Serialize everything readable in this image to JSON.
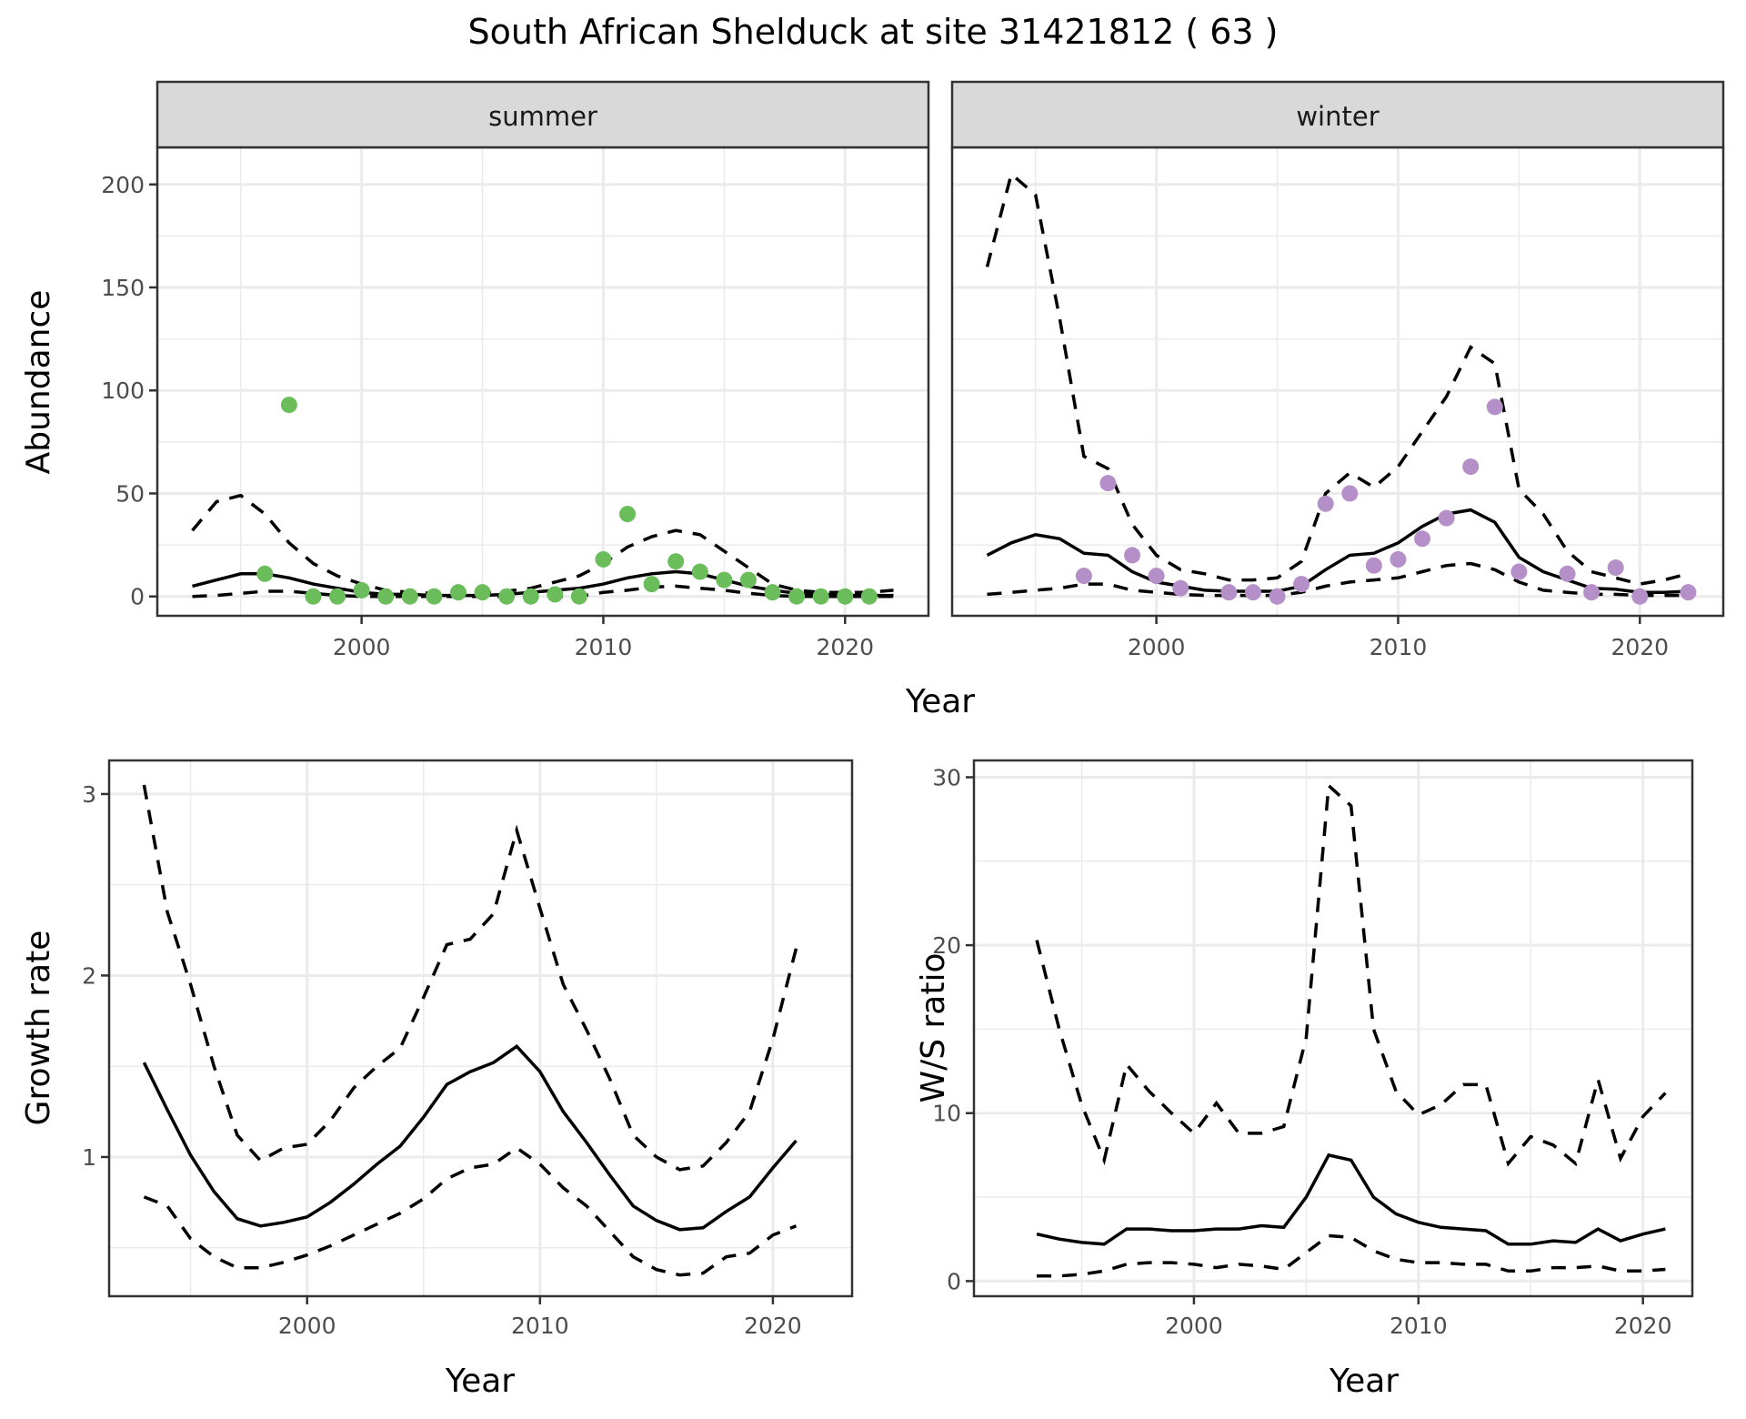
{
  "title": "South African Shelduck at site 31421812 ( 63 )",
  "chart_data": [
    {
      "type": "line+scatter",
      "panel": "summer",
      "xlabel": "Year",
      "ylabel": "Abundance",
      "xlim": [
        1991.55,
        2023.45
      ],
      "ylim": [
        -9.4,
        218
      ],
      "xticks": [
        2000,
        2010,
        2020
      ],
      "yticks": [
        0,
        50,
        100,
        150,
        200
      ],
      "grid": true,
      "point_color": "#6ABD5A",
      "years": [
        1993,
        1994,
        1995,
        1996,
        1997,
        1998,
        1999,
        2000,
        2001,
        2002,
        2003,
        2004,
        2005,
        2006,
        2007,
        2008,
        2009,
        2010,
        2011,
        2012,
        2013,
        2014,
        2015,
        2016,
        2017,
        2018,
        2019,
        2020,
        2021,
        2022
      ],
      "mean": [
        5,
        8,
        11,
        11,
        9,
        6,
        4,
        2,
        1,
        1,
        0.5,
        0.5,
        0.5,
        1,
        2,
        3,
        4,
        6,
        9,
        11,
        12,
        11,
        8,
        5,
        3,
        1.5,
        1,
        0.5,
        0.5,
        0.5
      ],
      "upper": [
        32,
        46,
        49,
        40,
        26,
        16,
        10,
        6,
        3,
        2,
        1.5,
        1.5,
        1.5,
        2.5,
        4,
        7,
        10,
        16,
        24,
        29,
        32,
        30,
        22,
        14,
        6,
        3,
        2,
        2,
        2,
        3
      ],
      "lower": [
        0,
        0.5,
        1.5,
        2.5,
        2.5,
        1.5,
        0.5,
        0,
        0,
        0,
        0,
        0,
        0,
        0,
        0,
        0,
        0,
        2,
        3,
        4.5,
        5,
        4,
        3,
        1.5,
        0.5,
        0,
        0,
        0,
        0,
        0
      ],
      "points": {
        "x": [
          1996,
          1997,
          1998,
          1999,
          2000,
          2001,
          2002,
          2003,
          2004,
          2005,
          2006,
          2007,
          2008,
          2009,
          2010,
          2011,
          2012,
          2013,
          2014,
          2015,
          2016,
          2017,
          2018,
          2019,
          2020,
          2021
        ],
        "y": [
          11,
          93,
          0,
          0,
          3,
          0,
          0,
          0,
          2,
          2,
          0,
          0,
          1,
          0,
          18,
          40,
          6,
          17,
          12,
          8,
          8,
          2,
          0,
          0,
          0,
          0
        ]
      }
    },
    {
      "type": "line+scatter",
      "panel": "winter",
      "xlabel": "Year",
      "ylabel": "Abundance",
      "xlim": [
        1991.55,
        2023.45
      ],
      "ylim": [
        -9.4,
        218
      ],
      "xticks": [
        2000,
        2010,
        2020
      ],
      "yticks": [
        0,
        50,
        100,
        150,
        200
      ],
      "grid": true,
      "point_color": "#B58FC7",
      "years": [
        1993,
        1994,
        1995,
        1996,
        1997,
        1998,
        1999,
        2000,
        2001,
        2002,
        2003,
        2004,
        2005,
        2006,
        2007,
        2008,
        2009,
        2010,
        2011,
        2012,
        2013,
        2014,
        2015,
        2016,
        2017,
        2018,
        2019,
        2020,
        2021,
        2022
      ],
      "mean": [
        20,
        26,
        30,
        28,
        21,
        20,
        12,
        7,
        5,
        3,
        2.5,
        2.5,
        2.5,
        5,
        13,
        20,
        21,
        26,
        34,
        40,
        42,
        36,
        19,
        12,
        8,
        4,
        3.5,
        2,
        2,
        2.5
      ],
      "upper": [
        160,
        205,
        195,
        135,
        68,
        62,
        35,
        20,
        13,
        11,
        8,
        8,
        9,
        17,
        50,
        60,
        53,
        63,
        80,
        97,
        121,
        113,
        52,
        40,
        22,
        12,
        9,
        6,
        8,
        11
      ],
      "lower": [
        1,
        2,
        3,
        4,
        6,
        6,
        3,
        2,
        1,
        0.5,
        0.5,
        0.5,
        0.5,
        2,
        5,
        7,
        8,
        9,
        12,
        15,
        16,
        13,
        7,
        3,
        2,
        1,
        1,
        0.5,
        0.5,
        0.5
      ],
      "points": {
        "x": [
          1997,
          1998,
          1999,
          2000,
          2001,
          2003,
          2004,
          2005,
          2006,
          2007,
          2008,
          2009,
          2010,
          2011,
          2012,
          2013,
          2014,
          2015,
          2017,
          2018,
          2019,
          2020,
          2022
        ],
        "y": [
          10,
          55,
          20,
          10,
          4,
          2,
          2,
          0,
          6,
          45,
          50,
          15,
          18,
          28,
          38,
          63,
          92,
          12,
          11,
          2,
          14,
          0,
          2
        ]
      }
    },
    {
      "type": "line",
      "xlabel": "Year",
      "ylabel": "Growth rate",
      "xlim": [
        1991.5,
        2023.4
      ],
      "ylim": [
        0.233,
        3.185
      ],
      "xticks": [
        2000,
        2010,
        2020
      ],
      "yticks": [
        1,
        2,
        3
      ],
      "grid": true,
      "years": [
        1993,
        1994,
        1995,
        1996,
        1997,
        1998,
        1999,
        2000,
        2001,
        2002,
        2003,
        2004,
        2005,
        2006,
        2007,
        2008,
        2009,
        2010,
        2011,
        2012,
        2013,
        2014,
        2015,
        2016,
        2017,
        2018,
        2019,
        2020,
        2021
      ],
      "mean": [
        1.52,
        1.26,
        1.01,
        0.81,
        0.66,
        0.62,
        0.64,
        0.67,
        0.75,
        0.85,
        0.96,
        1.06,
        1.22,
        1.4,
        1.47,
        1.52,
        1.61,
        1.47,
        1.25,
        1.08,
        0.9,
        0.73,
        0.65,
        0.6,
        0.61,
        0.7,
        0.78,
        0.94,
        1.09
      ],
      "upper": [
        3.05,
        2.35,
        1.95,
        1.5,
        1.12,
        0.98,
        1.05,
        1.07,
        1.2,
        1.38,
        1.5,
        1.6,
        1.88,
        2.17,
        2.2,
        2.34,
        2.8,
        2.37,
        1.95,
        1.7,
        1.43,
        1.12,
        1.0,
        0.93,
        0.95,
        1.08,
        1.25,
        1.65,
        2.15
      ],
      "lower": [
        0.78,
        0.73,
        0.55,
        0.45,
        0.39,
        0.39,
        0.42,
        0.46,
        0.51,
        0.57,
        0.63,
        0.69,
        0.77,
        0.88,
        0.94,
        0.96,
        1.05,
        0.96,
        0.83,
        0.73,
        0.59,
        0.45,
        0.38,
        0.35,
        0.36,
        0.45,
        0.47,
        0.57,
        0.62
      ]
    },
    {
      "type": "line",
      "xlabel": "Year",
      "ylabel": "W/S ratio",
      "xlim": [
        1990.2,
        2022.2
      ],
      "ylim": [
        -0.9,
        31.0
      ],
      "xticks": [
        2000,
        2010,
        2020
      ],
      "yticks": [
        0,
        10,
        20,
        30
      ],
      "grid": true,
      "years": [
        1993,
        1994,
        1995,
        1996,
        1997,
        1998,
        1999,
        2000,
        2001,
        2002,
        2003,
        2004,
        2005,
        2006,
        2007,
        2008,
        2009,
        2010,
        2011,
        2012,
        2013,
        2014,
        2015,
        2016,
        2017,
        2018,
        2019,
        2020,
        2021
      ],
      "mean": [
        2.8,
        2.5,
        2.3,
        2.2,
        3.1,
        3.1,
        3.0,
        3.0,
        3.1,
        3.1,
        3.3,
        3.2,
        5.0,
        7.5,
        7.2,
        5.0,
        4.0,
        3.5,
        3.2,
        3.1,
        3.0,
        2.2,
        2.2,
        2.4,
        2.3,
        3.1,
        2.4,
        2.8,
        3.1
      ],
      "upper": [
        20.3,
        15,
        10.5,
        7.2,
        12.9,
        11.3,
        10,
        8.8,
        10.6,
        8.8,
        8.8,
        9.2,
        14.5,
        29.5,
        28.3,
        15,
        11.3,
        9.9,
        10.5,
        11.7,
        11.7,
        7.0,
        8.6,
        8.1,
        7.0,
        12.0,
        7.3,
        9.8,
        11.2
      ],
      "lower": [
        0.3,
        0.3,
        0.4,
        0.6,
        1.0,
        1.1,
        1.1,
        1.0,
        0.8,
        1.0,
        0.9,
        0.7,
        1.7,
        2.7,
        2.6,
        1.8,
        1.3,
        1.1,
        1.1,
        1.0,
        1.0,
        0.6,
        0.6,
        0.8,
        0.8,
        0.9,
        0.6,
        0.6,
        0.7
      ]
    }
  ]
}
